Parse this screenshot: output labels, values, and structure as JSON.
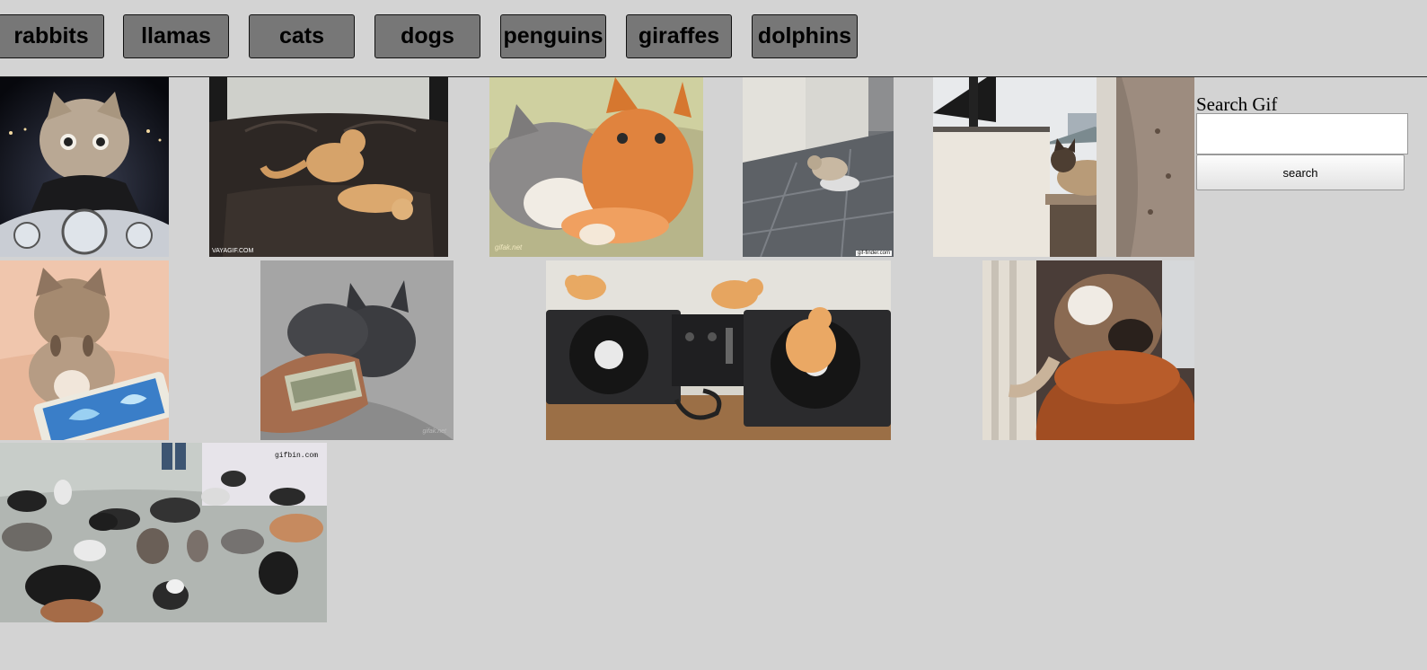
{
  "topics": [
    "rabbits",
    "llamas",
    "cats",
    "dogs",
    "penguins",
    "giraffes",
    "dolphins"
  ],
  "gifs": [
    {
      "subject": "kitten-on-motorcycle"
    },
    {
      "subject": "cats-wrestling-on-leather-couch",
      "watermark": "VAYAGIF.COM"
    },
    {
      "subject": "gray-and-orange-cats-cuddling",
      "watermark": "gifak.net"
    },
    {
      "subject": "cat-chasing-robot-vacuum",
      "watermark": "gif-finder.com"
    },
    {
      "subject": "siamese-cat-on-window-ledge"
    },
    {
      "subject": "kitten-playing-with-phone-game"
    },
    {
      "subject": "gray-kitten-pawing-money"
    },
    {
      "subject": "kittens-on-dj-turntables"
    },
    {
      "subject": "cat-jumping-onto-couch"
    },
    {
      "subject": "many-cats-on-floor",
      "watermark": "gifbin.com"
    }
  ],
  "search": {
    "label": "Search Gif",
    "value": "",
    "button_label": "search"
  }
}
